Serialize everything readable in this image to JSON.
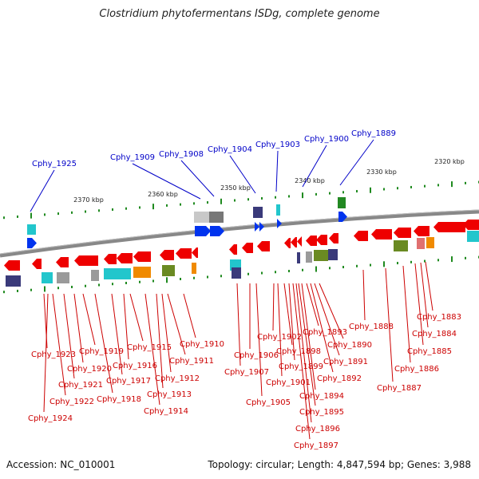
{
  "title": "Clostridium phytofermentans ISDg, complete genome",
  "accession": "Accession: NC_010001",
  "summary": "Topology: circular; Length: 4,847,594 bp; Genes: 3,988",
  "colors": {
    "top_label": "#0000c8",
    "bottom_label": "#cc0000",
    "track": "#888888",
    "tick": "#1f8a1f",
    "gene_red": "#ee0000",
    "gene_blue": "#0033ee",
    "gene_cyan": "#22c6cc",
    "gene_navy": "#3a3a7a",
    "gene_gray": "#9a9a9a",
    "gene_olive": "#6a8a22",
    "gene_orange": "#f08a00",
    "gene_pink": "#e07070",
    "gene_green": "#228822"
  },
  "scale_labels": [
    "2320 kbp",
    "2330 kbp",
    "2340 kbp",
    "2350 kbp",
    "2360 kbp",
    "2370 kbp"
  ],
  "top_genes": [
    "Cphy_1925",
    "Cphy_1909",
    "Cphy_1908",
    "Cphy_1904",
    "Cphy_1903",
    "Cphy_1900",
    "Cphy_1889"
  ],
  "bottom_genes": [
    "Cphy_1923",
    "Cphy_1924",
    "Cphy_1922",
    "Cphy_1921",
    "Cphy_1920",
    "Cphy_1919",
    "Cphy_1918",
    "Cphy_1917",
    "Cphy_1916",
    "Cphy_1915",
    "Cphy_1914",
    "Cphy_1913",
    "Cphy_1912",
    "Cphy_1911",
    "Cphy_1910",
    "Cphy_1907",
    "Cphy_1906",
    "Cphy_1905",
    "Cphy_1902",
    "Cphy_1901",
    "Cphy_1898",
    "Cphy_1899",
    "Cphy_1897",
    "Cphy_1896",
    "Cphy_1895",
    "Cphy_1894",
    "Cphy_1893",
    "Cphy_1892",
    "Cphy_1891",
    "Cphy_1890",
    "Cphy_1888",
    "Cphy_1887",
    "Cphy_1886",
    "Cphy_1885",
    "Cphy_1884",
    "Cphy_1883"
  ]
}
